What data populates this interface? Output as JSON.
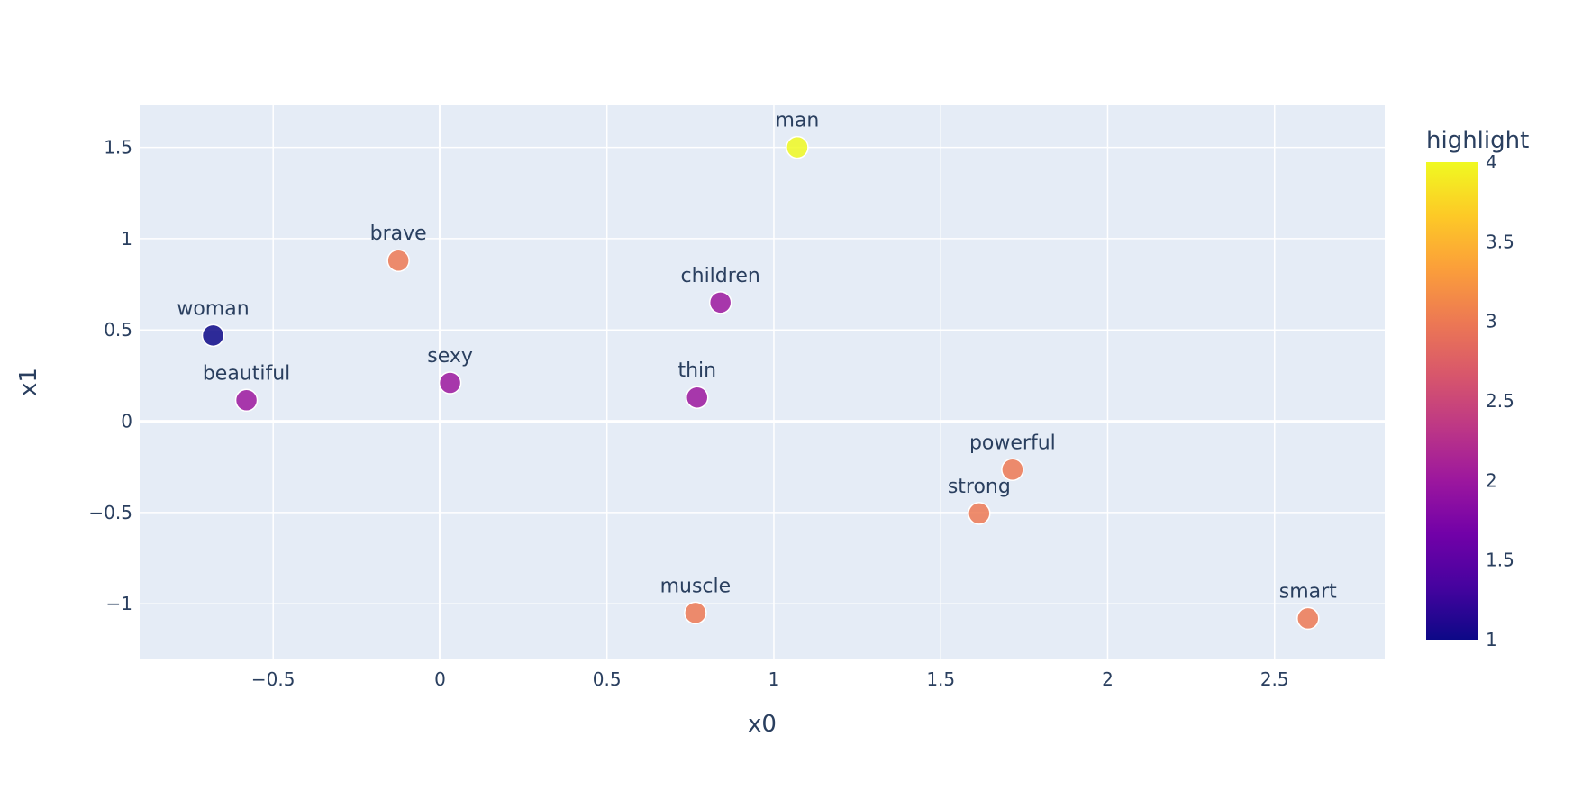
{
  "chart_data": {
    "type": "scatter",
    "xlabel": "x0",
    "ylabel": "x1",
    "xlim": [
      -0.9,
      2.83
    ],
    "ylim": [
      -1.3,
      1.73
    ],
    "x_ticks": [
      -0.5,
      0,
      0.5,
      1,
      1.5,
      2,
      2.5
    ],
    "x_tick_labels": [
      "−0.5",
      "0",
      "0.5",
      "1",
      "1.5",
      "2",
      "2.5"
    ],
    "y_ticks": [
      -1,
      -0.5,
      0,
      0.5,
      1,
      1.5
    ],
    "y_tick_labels": [
      "−1",
      "−0.5",
      "0",
      "0.5",
      "1",
      "1.5"
    ],
    "grid": true,
    "marker_color_by": "highlight",
    "points": [
      {
        "label": "man",
        "x": 1.07,
        "y": 1.5,
        "highlight": 4
      },
      {
        "label": "brave",
        "x": -0.125,
        "y": 0.88,
        "highlight": 3
      },
      {
        "label": "children",
        "x": 0.84,
        "y": 0.65,
        "highlight": 2
      },
      {
        "label": "woman",
        "x": -0.68,
        "y": 0.47,
        "highlight": 1
      },
      {
        "label": "sexy",
        "x": 0.03,
        "y": 0.21,
        "highlight": 2
      },
      {
        "label": "thin",
        "x": 0.77,
        "y": 0.13,
        "highlight": 2
      },
      {
        "label": "beautiful",
        "x": -0.58,
        "y": 0.115,
        "highlight": 2
      },
      {
        "label": "powerful",
        "x": 1.715,
        "y": -0.265,
        "highlight": 3
      },
      {
        "label": "strong",
        "x": 1.615,
        "y": -0.505,
        "highlight": 3
      },
      {
        "label": "muscle",
        "x": 0.765,
        "y": -1.05,
        "highlight": 3
      },
      {
        "label": "smart",
        "x": 2.6,
        "y": -1.08,
        "highlight": 3
      }
    ],
    "colorbar": {
      "title": "highlight",
      "range": [
        1,
        4
      ],
      "ticks": [
        1,
        1.5,
        2,
        2.5,
        3,
        3.5,
        4
      ],
      "tick_labels": [
        "1",
        "1.5",
        "2",
        "2.5",
        "3",
        "3.5",
        "4"
      ],
      "colorscale": [
        [
          0.0,
          "#0d0887"
        ],
        [
          0.111,
          "#46039f"
        ],
        [
          0.222,
          "#7201a8"
        ],
        [
          0.333,
          "#9c179e"
        ],
        [
          0.444,
          "#bd3786"
        ],
        [
          0.556,
          "#d8576b"
        ],
        [
          0.667,
          "#ed7953"
        ],
        [
          0.778,
          "#fb9f3a"
        ],
        [
          0.889,
          "#fdca26"
        ],
        [
          1.0,
          "#f0f921"
        ]
      ]
    },
    "plot_background": "#e5ecf6",
    "grid_color": "#ffffff",
    "text_color": "#2a3f5f"
  }
}
